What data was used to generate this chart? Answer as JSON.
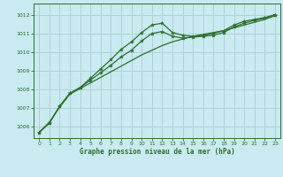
{
  "title": "Graphe pression niveau de la mer (hPa)",
  "bg_color": "#c8eaf0",
  "grid_color": "#b0d0d8",
  "line_color": "#2d6e2d",
  "marker_color": "#2d6e2d",
  "xlim": [
    -0.5,
    23.5
  ],
  "ylim": [
    1005.4,
    1012.6
  ],
  "yticks": [
    1006,
    1007,
    1008,
    1009,
    1010,
    1011,
    1012
  ],
  "xticks": [
    0,
    1,
    2,
    3,
    4,
    5,
    6,
    7,
    8,
    9,
    10,
    11,
    12,
    13,
    14,
    15,
    16,
    17,
    18,
    19,
    20,
    21,
    22,
    23
  ],
  "series_spiky": [
    1005.7,
    1006.2,
    1007.1,
    1007.8,
    1008.1,
    1008.6,
    1009.1,
    1009.6,
    1010.15,
    1010.55,
    1011.05,
    1011.45,
    1011.55,
    1011.05,
    1010.9,
    1010.85,
    1010.9,
    1011.0,
    1011.15,
    1011.45,
    1011.65,
    1011.75,
    1011.85,
    1012.0
  ],
  "series_smooth": [
    1005.7,
    1006.25,
    1007.05,
    1007.75,
    1008.05,
    1008.35,
    1008.65,
    1008.95,
    1009.25,
    1009.55,
    1009.85,
    1010.1,
    1010.35,
    1010.55,
    1010.7,
    1010.85,
    1010.95,
    1011.05,
    1011.15,
    1011.3,
    1011.45,
    1011.6,
    1011.75,
    1011.95
  ],
  "series_mid": [
    1005.7,
    1006.2,
    1007.1,
    1007.8,
    1008.1,
    1008.5,
    1008.9,
    1009.3,
    1009.75,
    1010.1,
    1010.6,
    1011.0,
    1011.1,
    1010.85,
    1010.75,
    1010.8,
    1010.85,
    1010.9,
    1011.05,
    1011.35,
    1011.55,
    1011.7,
    1011.82,
    1012.0
  ]
}
